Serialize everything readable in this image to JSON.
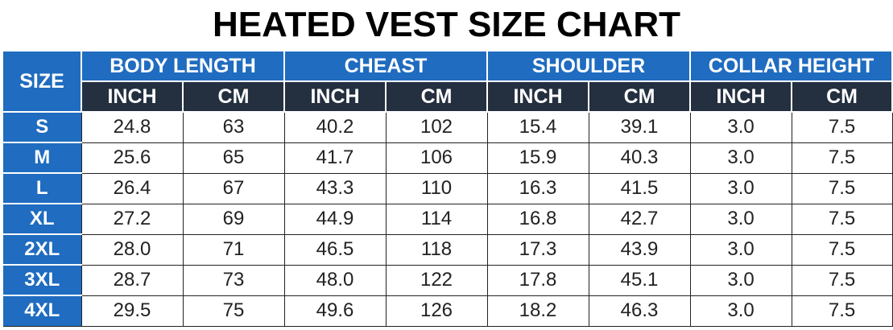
{
  "title": "HEATED VEST SIZE CHART",
  "size_header": "SIZE",
  "groups": [
    "BODY LENGTH",
    "CHEAST",
    "SHOULDER",
    "COLLAR HEIGHT"
  ],
  "units": [
    "INCH",
    "CM",
    "INCH",
    "CM",
    "INCH",
    "CM",
    "INCH",
    "CM"
  ],
  "colors": {
    "header_blue": "#1f6cc0",
    "unit_dark": "#243040",
    "text_dark": "#222222"
  },
  "rows": [
    {
      "size": "S",
      "values": [
        "24.8",
        "63",
        "40.2",
        "102",
        "15.4",
        "39.1",
        "3.0",
        "7.5"
      ]
    },
    {
      "size": "M",
      "values": [
        "25.6",
        "65",
        "41.7",
        "106",
        "15.9",
        "40.3",
        "3.0",
        "7.5"
      ]
    },
    {
      "size": "L",
      "values": [
        "26.4",
        "67",
        "43.3",
        "110",
        "16.3",
        "41.5",
        "3.0",
        "7.5"
      ]
    },
    {
      "size": "XL",
      "values": [
        "27.2",
        "69",
        "44.9",
        "114",
        "16.8",
        "42.7",
        "3.0",
        "7.5"
      ]
    },
    {
      "size": "2XL",
      "values": [
        "28.0",
        "71",
        "46.5",
        "118",
        "17.3",
        "43.9",
        "3.0",
        "7.5"
      ]
    },
    {
      "size": "3XL",
      "values": [
        "28.7",
        "73",
        "48.0",
        "122",
        "17.8",
        "45.1",
        "3.0",
        "7.5"
      ]
    },
    {
      "size": "4XL",
      "values": [
        "29.5",
        "75",
        "49.6",
        "126",
        "18.2",
        "46.3",
        "3.0",
        "7.5"
      ]
    }
  ]
}
